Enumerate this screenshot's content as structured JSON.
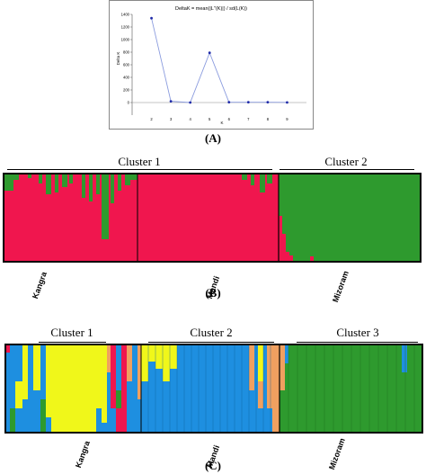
{
  "panels": {
    "A": {
      "label": "(A)",
      "chart_data": {
        "type": "line",
        "title": "DeltaK = mean(|L''(K)|) / sd(L(K))",
        "xlabel": "K",
        "ylabel": "Delta K",
        "x": [
          2,
          3,
          4,
          5,
          6,
          7,
          8,
          9
        ],
        "y": [
          1340,
          20,
          0,
          790,
          5,
          5,
          5,
          2
        ],
        "xlim": [
          1,
          10
        ],
        "ylim": [
          -200,
          1400
        ],
        "yticks": [
          0,
          200,
          400,
          600,
          800,
          1000,
          1200,
          1400
        ],
        "xticks": [
          2,
          3,
          4,
          5,
          6,
          7,
          8,
          9
        ],
        "line_color": "#8a9bde",
        "marker_color": "#1f2aa8"
      }
    },
    "B": {
      "label": "(B)",
      "clusters": [
        "Cluster 1",
        "Cluster 2"
      ],
      "populations": [
        "Kangra",
        "Mandi",
        "Mizoram"
      ],
      "colors": {
        "red": "#f0164e",
        "green": "#2e9a2e"
      }
    },
    "C": {
      "label": "(C)",
      "clusters": [
        "Cluster 1",
        "Cluster 2",
        "Cluster 3"
      ],
      "populations": [
        "Kangra",
        "Mandi",
        "Mizoram"
      ],
      "colors": {
        "yellow": "#f0f71a",
        "blue": "#1e8fe0",
        "green": "#2e9a2e",
        "red": "#f0164e",
        "orange": "#f0a060"
      }
    }
  }
}
